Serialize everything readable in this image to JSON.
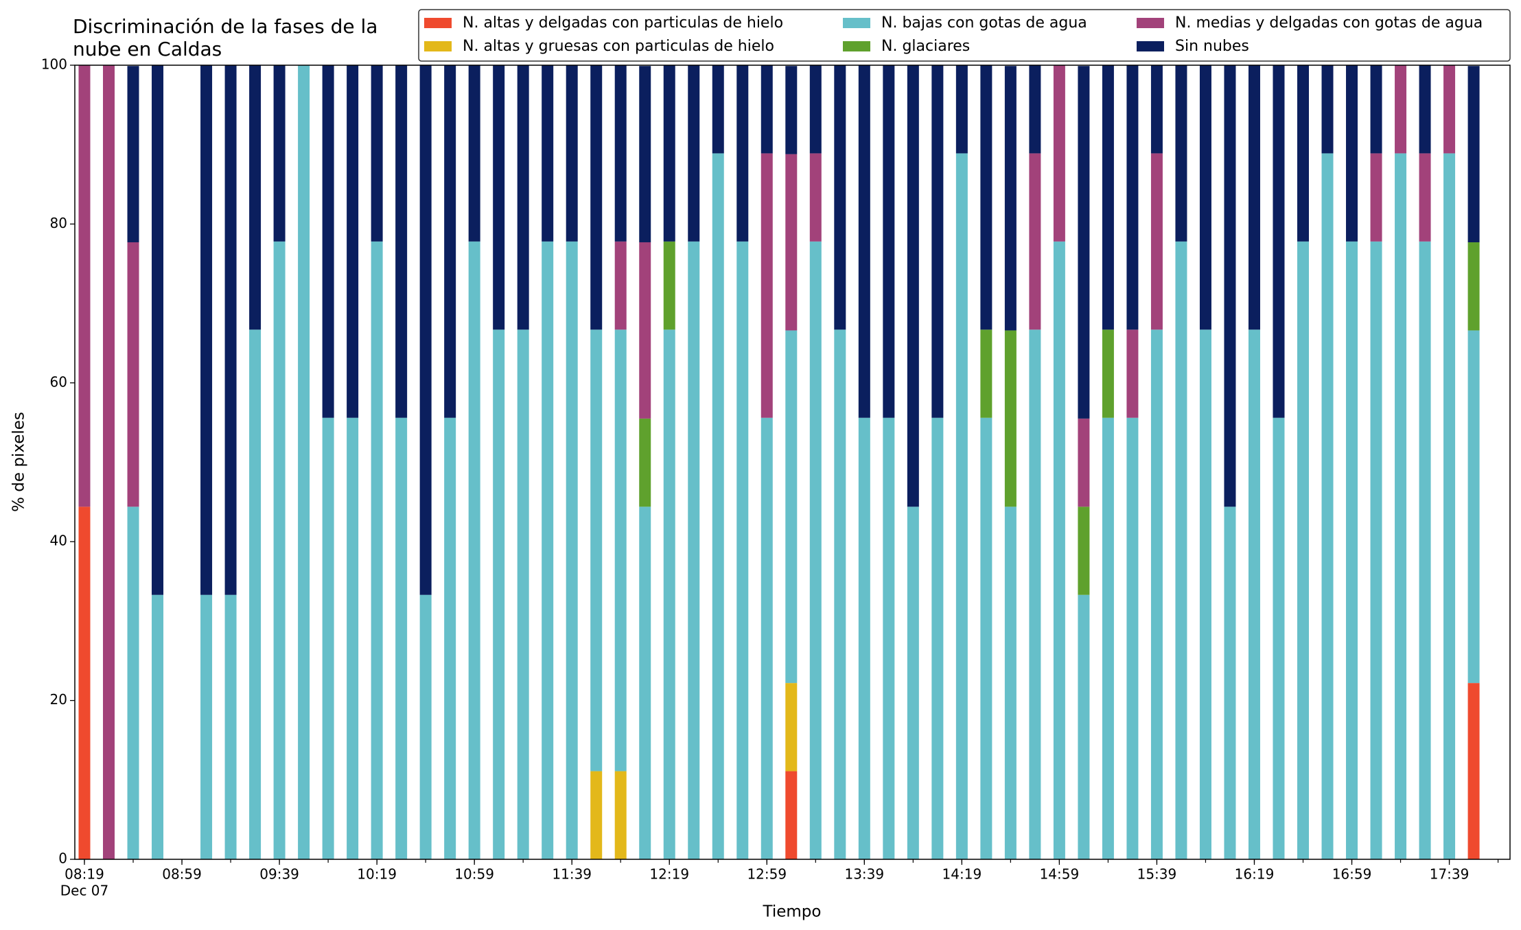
{
  "chart_data": {
    "type": "stacked_bar",
    "title": [
      "Discriminación de la fases de la",
      "nube en Caldas"
    ],
    "x_label": "Tiempo",
    "y_label": "% de pixeles",
    "date_label": "Dec 07",
    "categories": [
      "08:19",
      "08:29",
      "08:39",
      "08:49",
      "08:59",
      "09:09",
      "09:19",
      "09:29",
      "09:39",
      "09:49",
      "09:59",
      "10:09",
      "10:19",
      "10:29",
      "10:39",
      "10:49",
      "10:59",
      "11:09",
      "11:19",
      "11:29",
      "11:39",
      "11:49",
      "11:59",
      "12:09",
      "12:19",
      "12:29",
      "12:39",
      "12:49",
      "12:59",
      "13:09",
      "13:19",
      "13:29",
      "13:39",
      "13:49",
      "13:59",
      "14:09",
      "14:19",
      "14:29",
      "14:39",
      "14:49",
      "14:59",
      "15:09",
      "15:19",
      "15:29",
      "15:39",
      "15:49",
      "15:59",
      "16:09",
      "16:19",
      "16:29",
      "16:39",
      "16:49",
      "16:59",
      "17:09",
      "17:19",
      "17:29",
      "17:39",
      "17:49"
    ],
    "xticks": [
      "08:19",
      "08:59",
      "09:39",
      "10:19",
      "10:59",
      "11:39",
      "12:19",
      "12:59",
      "13:39",
      "14:19",
      "14:59",
      "15:39",
      "16:19",
      "16:59",
      "17:39"
    ],
    "ylim": [
      0,
      100
    ],
    "yticks": [
      0,
      20,
      40,
      60,
      80,
      100
    ],
    "grid": false,
    "series": [
      {
        "name": "N. altas y delgadas con particulas de hielo",
        "color": "#ef4a2e",
        "values": [
          44.4,
          0,
          0,
          0,
          0,
          0,
          0,
          0,
          0,
          0,
          0,
          0,
          0,
          0,
          0,
          0,
          0,
          0,
          0,
          0,
          0,
          0,
          0,
          0,
          0,
          0,
          0,
          0,
          0,
          11.1,
          0,
          0,
          0,
          0,
          0,
          0,
          0,
          0,
          0,
          0,
          0,
          0,
          0,
          0,
          0,
          0,
          0,
          0,
          0,
          0,
          0,
          0,
          0,
          0,
          0,
          0,
          0,
          22.2
        ]
      },
      {
        "name": "N. altas y gruesas con particulas de hielo",
        "color": "#e3b81a",
        "values": [
          0,
          0,
          0,
          0,
          0,
          0,
          0,
          0,
          0,
          0,
          0,
          0,
          0,
          0,
          0,
          0,
          0,
          0,
          0,
          0,
          0,
          11.1,
          11.1,
          0,
          0,
          0,
          0,
          0,
          0,
          11.1,
          0,
          0,
          0,
          0,
          0,
          0,
          0,
          0,
          0,
          0,
          0,
          0,
          0,
          0,
          0,
          0,
          0,
          0,
          0,
          0,
          0,
          0,
          0,
          0,
          0,
          0,
          0,
          0
        ]
      },
      {
        "name": "N. bajas con gotas de agua",
        "color": "#66bfc9",
        "values": [
          0,
          0,
          44.4,
          33.3,
          0,
          33.3,
          33.3,
          66.7,
          77.8,
          100,
          55.6,
          55.6,
          77.8,
          55.6,
          33.3,
          55.6,
          77.8,
          66.7,
          66.7,
          77.8,
          77.8,
          55.6,
          55.6,
          44.4,
          66.7,
          77.8,
          88.9,
          77.8,
          55.6,
          44.4,
          77.8,
          66.7,
          55.6,
          55.6,
          44.4,
          55.6,
          88.9,
          55.6,
          44.4,
          66.7,
          77.8,
          33.3,
          55.6,
          55.6,
          66.7,
          77.8,
          66.7,
          44.4,
          66.7,
          55.6,
          77.8,
          88.9,
          77.8,
          77.8,
          88.9,
          77.8,
          88.9,
          44.4
        ]
      },
      {
        "name": "N. glaciares",
        "color": "#5fa12d",
        "values": [
          0,
          0,
          0,
          0,
          0,
          0,
          0,
          0,
          0,
          0,
          0,
          0,
          0,
          0,
          0,
          0,
          0,
          0,
          0,
          0,
          0,
          0,
          0,
          11.1,
          11.1,
          0,
          0,
          0,
          0,
          0,
          0,
          0,
          0,
          0,
          0,
          0,
          0,
          11.1,
          22.2,
          0,
          0,
          11.1,
          11.1,
          0,
          0,
          0,
          0,
          0,
          0,
          0,
          0,
          0,
          0,
          0,
          0,
          0,
          0,
          11.1
        ]
      },
      {
        "name": "N. medias y delgadas con gotas de agua",
        "color": "#a2427a",
        "values": [
          55.6,
          100,
          33.3,
          0,
          0,
          0,
          0,
          0,
          0,
          0,
          0,
          0,
          0,
          0,
          0,
          0,
          0,
          0,
          0,
          0,
          0,
          0,
          11.1,
          22.2,
          0,
          0,
          0,
          0,
          33.3,
          22.2,
          11.1,
          0,
          0,
          0,
          0,
          0,
          0,
          0,
          0,
          22.2,
          22.2,
          11.1,
          0,
          11.1,
          22.2,
          0,
          0,
          0,
          0,
          0,
          0,
          0,
          0,
          11.1,
          11.1,
          11.1,
          11.1,
          0
        ]
      },
      {
        "name": "Sin nubes",
        "color": "#0b1f5e",
        "values": [
          0,
          0,
          22.2,
          66.7,
          0,
          66.7,
          66.7,
          33.3,
          22.2,
          0,
          44.4,
          44.4,
          22.2,
          44.4,
          66.7,
          44.4,
          22.2,
          33.3,
          33.3,
          22.2,
          22.2,
          33.3,
          22.2,
          22.2,
          22.2,
          22.2,
          11.1,
          22.2,
          11.1,
          11.1,
          11.1,
          33.3,
          44.4,
          44.4,
          55.6,
          44.4,
          11.1,
          33.3,
          33.3,
          11.1,
          0,
          44.4,
          33.3,
          33.3,
          11.1,
          22.2,
          33.3,
          55.6,
          33.3,
          44.4,
          22.2,
          11.1,
          22.2,
          11.1,
          0,
          11.1,
          0,
          22.2
        ]
      }
    ]
  }
}
